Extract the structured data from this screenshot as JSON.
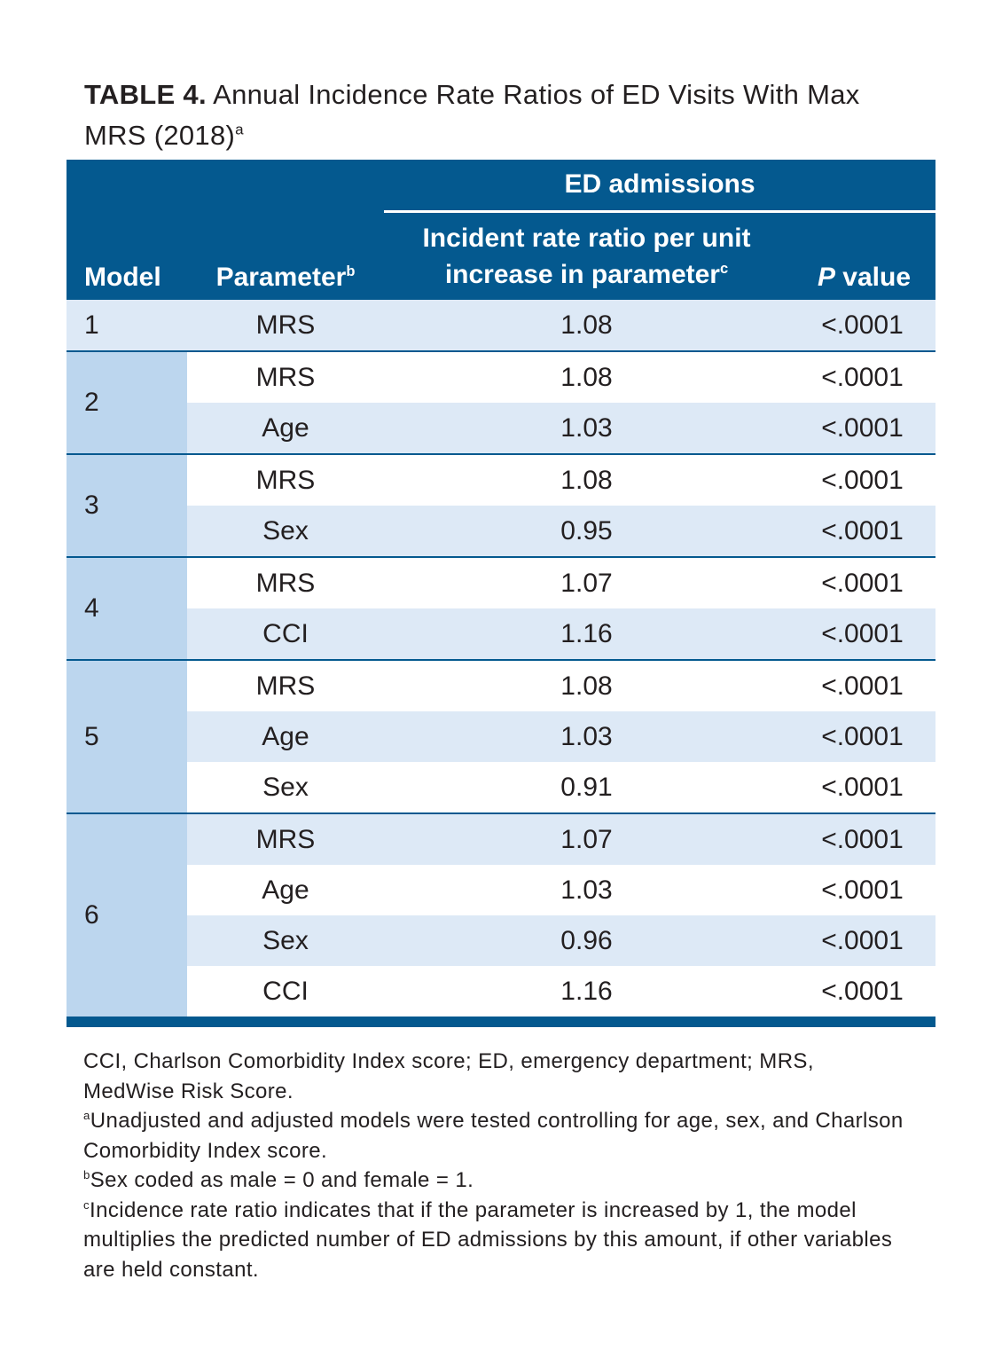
{
  "title": {
    "label": "TABLE 4.",
    "text": "Annual Incidence Rate Ratios of ED Visits With Max MRS (2018)",
    "note": "a"
  },
  "table": {
    "group_header": "ED admissions",
    "columns": [
      {
        "label": "Model"
      },
      {
        "label": "Parameter",
        "note": "b"
      },
      {
        "label": "Incident rate ratio per unit increase in parameter",
        "note": "c"
      },
      {
        "italic": "P",
        "label": "value"
      }
    ],
    "groups": [
      {
        "model": "1",
        "rows": [
          [
            "MRS",
            "1.08",
            "<.0001"
          ]
        ]
      },
      {
        "model": "2",
        "rows": [
          [
            "MRS",
            "1.08",
            "<.0001"
          ],
          [
            "Age",
            "1.03",
            "<.0001"
          ]
        ]
      },
      {
        "model": "3",
        "rows": [
          [
            "MRS",
            "1.08",
            "<.0001"
          ],
          [
            "Sex",
            "0.95",
            "<.0001"
          ]
        ]
      },
      {
        "model": "4",
        "rows": [
          [
            "MRS",
            "1.07",
            "<.0001"
          ],
          [
            "CCI",
            "1.16",
            "<.0001"
          ]
        ]
      },
      {
        "model": "5",
        "rows": [
          [
            "MRS",
            "1.08",
            "<.0001"
          ],
          [
            "Age",
            "1.03",
            "<.0001"
          ],
          [
            "Sex",
            "0.91",
            "<.0001"
          ]
        ]
      },
      {
        "model": "6",
        "rows": [
          [
            "MRS",
            "1.07",
            "<.0001"
          ],
          [
            "Age",
            "1.03",
            "<.0001"
          ],
          [
            "Sex",
            "0.96",
            "<.0001"
          ],
          [
            "CCI",
            "1.16",
            "<.0001"
          ]
        ]
      }
    ]
  },
  "footnotes": [
    {
      "text": "CCI, Charlson Comorbidity Index score; ED, emergency department; MRS, MedWise Risk Score."
    },
    {
      "note": "a",
      "text": "Unadjusted and adjusted models were tested controlling for age, sex, and Charlson Comorbidity Index score."
    },
    {
      "note": "b",
      "text": "Sex coded as male = 0 and female = 1."
    },
    {
      "note": "c",
      "text": "Incidence rate ratio indicates that if the parameter is increased by 1, the model multiplies the predicted number of ED admissions by this amount, if other variables are held constant."
    }
  ]
}
